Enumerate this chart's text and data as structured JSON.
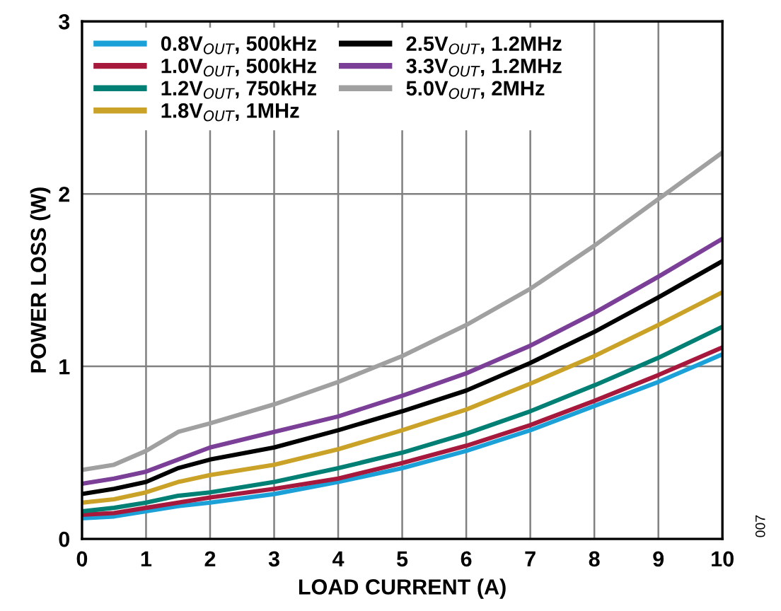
{
  "chart_data": {
    "type": "line",
    "xlabel": "LOAD CURRENT (A)",
    "ylabel": "POWER LOSS (W)",
    "x": [
      0,
      0.5,
      1,
      1.5,
      2,
      3,
      4,
      5,
      6,
      7,
      8,
      9,
      10
    ],
    "series": [
      {
        "name": "0.8V$_{OUT}$, 500kHz",
        "color": "#1ba1d8",
        "values": [
          0.12,
          0.13,
          0.16,
          0.19,
          0.21,
          0.26,
          0.33,
          0.41,
          0.51,
          0.63,
          0.77,
          0.91,
          1.07
        ]
      },
      {
        "name": "1.0V$_{OUT}$, 500kHz",
        "color": "#a6193c",
        "values": [
          0.14,
          0.15,
          0.18,
          0.21,
          0.24,
          0.29,
          0.35,
          0.44,
          0.54,
          0.66,
          0.8,
          0.95,
          1.11
        ]
      },
      {
        "name": "1.2V$_{OUT}$, 750kHz",
        "color": "#008075",
        "values": [
          0.16,
          0.18,
          0.21,
          0.25,
          0.27,
          0.33,
          0.41,
          0.5,
          0.61,
          0.74,
          0.89,
          1.05,
          1.23
        ]
      },
      {
        "name": "1.8V$_{OUT}$, 1MHz",
        "color": "#c9a227",
        "values": [
          0.21,
          0.23,
          0.27,
          0.33,
          0.37,
          0.43,
          0.52,
          0.63,
          0.75,
          0.9,
          1.06,
          1.24,
          1.43
        ]
      },
      {
        "name": "2.5V$_{OUT}$, 1.2MHz",
        "color": "#000000",
        "values": [
          0.26,
          0.29,
          0.33,
          0.41,
          0.46,
          0.53,
          0.63,
          0.74,
          0.86,
          1.02,
          1.2,
          1.4,
          1.61
        ]
      },
      {
        "name": "3.3V$_{OUT}$, 1.2MHz",
        "color": "#7b3f98",
        "values": [
          0.32,
          0.35,
          0.39,
          0.46,
          0.53,
          0.62,
          0.71,
          0.83,
          0.96,
          1.12,
          1.31,
          1.52,
          1.74
        ]
      },
      {
        "name": "5.0V$_{OUT}$, 2MHz",
        "color": "#a0a0a0",
        "values": [
          0.4,
          0.43,
          0.51,
          0.62,
          0.67,
          0.78,
          0.91,
          1.06,
          1.24,
          1.45,
          1.7,
          1.97,
          2.24
        ]
      }
    ],
    "xlim": [
      0,
      10
    ],
    "ylim": [
      0,
      3
    ],
    "xticks": [
      0,
      1,
      2,
      3,
      4,
      5,
      6,
      7,
      8,
      9,
      10
    ],
    "yticks": [
      0,
      1,
      2,
      3
    ],
    "grid": true,
    "legend": "top left",
    "line_style": "solid",
    "marker": "none",
    "annotations": [
      "007"
    ]
  }
}
